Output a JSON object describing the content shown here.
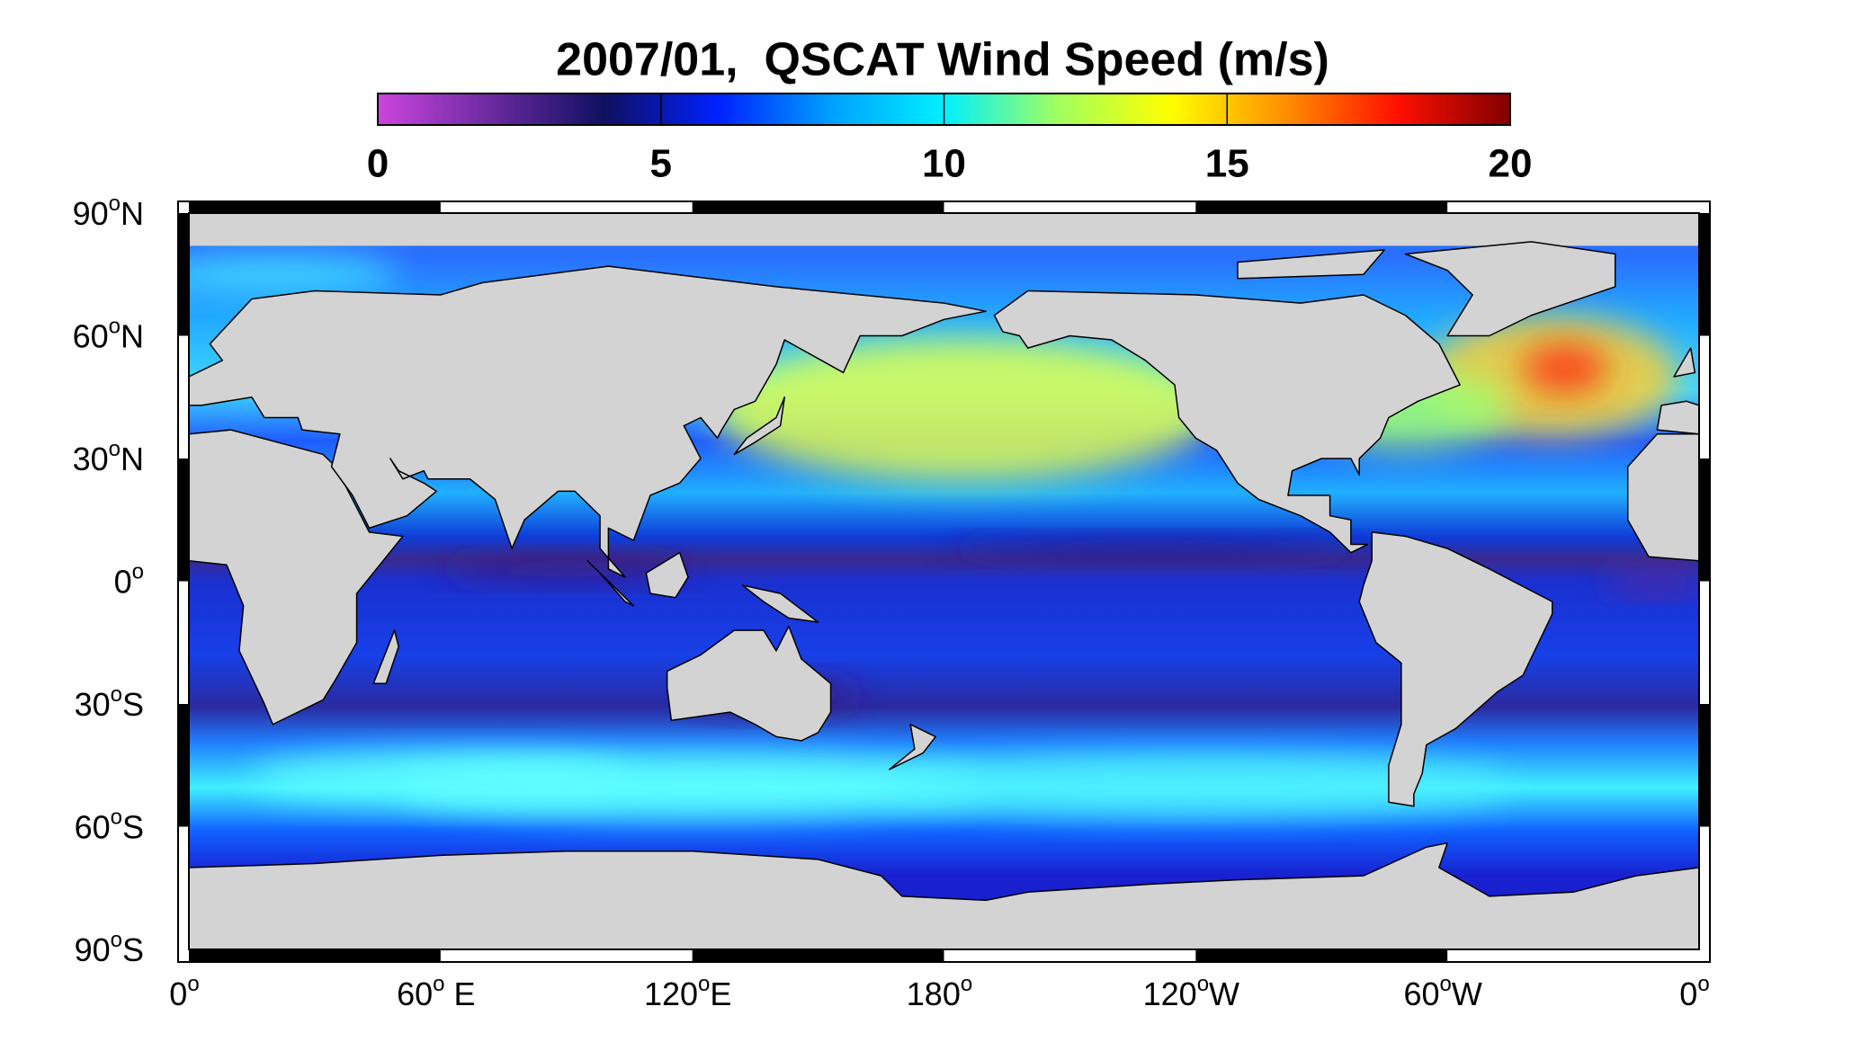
{
  "title": "2007/01,  QSCAT Wind Speed (m/s)",
  "colorbar": {
    "lim": [
      0,
      20
    ],
    "ticks": [
      0,
      5,
      10,
      15,
      20
    ],
    "colors": [
      "#cc44dd",
      "#6a2aa0",
      "#101060",
      "#0020ff",
      "#00a0ff",
      "#00f0ff",
      "#a0ff60",
      "#ffff00",
      "#ff9000",
      "#ff1000",
      "#800000"
    ]
  },
  "degree_symbol": "o",
  "lat_labels": [
    {
      "value": 90,
      "number": "90",
      "suffix": "N"
    },
    {
      "value": 60,
      "number": "60",
      "suffix": "N"
    },
    {
      "value": 30,
      "number": "30",
      "suffix": "N"
    },
    {
      "value": 0,
      "number": "0"
    },
    {
      "value": -30,
      "number": "30",
      "suffix": "S"
    },
    {
      "value": -60,
      "number": "60",
      "suffix": "S"
    },
    {
      "value": -90,
      "number": "90",
      "suffix": "S"
    }
  ],
  "lon_labels": [
    {
      "value": 0,
      "number": "0"
    },
    {
      "value": 60,
      "number": "60",
      "suffix": " E"
    },
    {
      "value": 120,
      "number": "120",
      "suffix": "E"
    },
    {
      "value": 180,
      "number": "180"
    },
    {
      "value": 240,
      "number": "120",
      "suffix": "W"
    },
    {
      "value": 300,
      "number": "60",
      "suffix": "W"
    },
    {
      "value": 360,
      "number": "0"
    }
  ]
}
